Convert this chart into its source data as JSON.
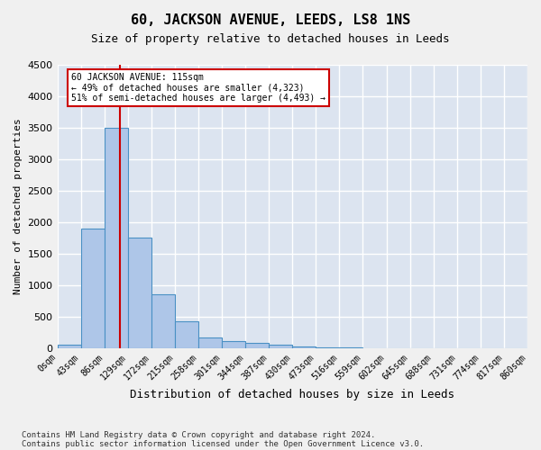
{
  "title": "60, JACKSON AVENUE, LEEDS, LS8 1NS",
  "subtitle": "Size of property relative to detached houses in Leeds",
  "xlabel": "Distribution of detached houses by size in Leeds",
  "ylabel": "Number of detached properties",
  "footnote1": "Contains HM Land Registry data © Crown copyright and database right 2024.",
  "footnote2": "Contains public sector information licensed under the Open Government Licence v3.0.",
  "bin_labels": [
    "0sqm",
    "43sqm",
    "86sqm",
    "129sqm",
    "172sqm",
    "215sqm",
    "258sqm",
    "301sqm",
    "344sqm",
    "387sqm",
    "430sqm",
    "473sqm",
    "516sqm",
    "559sqm",
    "602sqm",
    "645sqm",
    "688sqm",
    "731sqm",
    "774sqm",
    "817sqm",
    "860sqm"
  ],
  "bar_values": [
    50,
    1900,
    3500,
    1750,
    850,
    430,
    175,
    110,
    80,
    50,
    20,
    10,
    5,
    3,
    2,
    1,
    1,
    0,
    0,
    0
  ],
  "bar_color": "#aec6e8",
  "bar_edge_color": "#4a90c4",
  "background_color": "#dce4f0",
  "grid_color": "#ffffff",
  "red_line_color": "#cc0000",
  "annotation_text": "60 JACKSON AVENUE: 115sqm\n← 49% of detached houses are smaller (4,323)\n51% of semi-detached houses are larger (4,493) →",
  "annotation_box_color": "#cc0000",
  "ylim": [
    0,
    4500
  ],
  "yticks": [
    0,
    500,
    1000,
    1500,
    2000,
    2500,
    3000,
    3500,
    4000,
    4500
  ],
  "fig_bg_color": "#f0f0f0"
}
